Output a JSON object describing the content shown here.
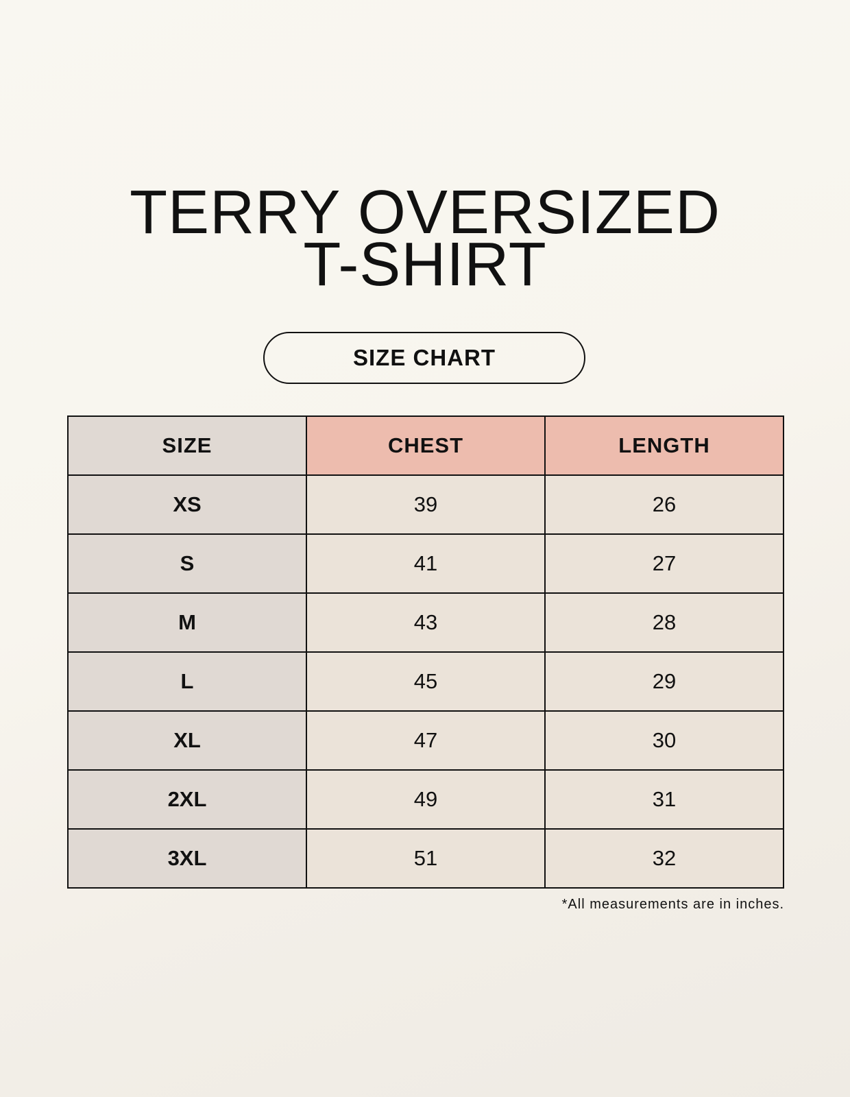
{
  "title": {
    "line1": "TERRY OVERSIZED",
    "line2": "T-SHIRT"
  },
  "badge": "SIZE CHART",
  "table": {
    "headers": [
      "SIZE",
      "CHEST",
      "LENGTH"
    ],
    "rows": [
      [
        "XS",
        "39",
        "26"
      ],
      [
        "S",
        "41",
        "27"
      ],
      [
        "M",
        "43",
        "28"
      ],
      [
        "L",
        "45",
        "29"
      ],
      [
        "XL",
        "47",
        "30"
      ],
      [
        "2XL",
        "49",
        "31"
      ],
      [
        "3XL",
        "51",
        "32"
      ]
    ]
  },
  "footnote": "*All measurements are in inches.",
  "colors": {
    "size_column": "#e0d9d3",
    "header_accent": "#edbcae",
    "value_cells": "#ebe3d9"
  }
}
